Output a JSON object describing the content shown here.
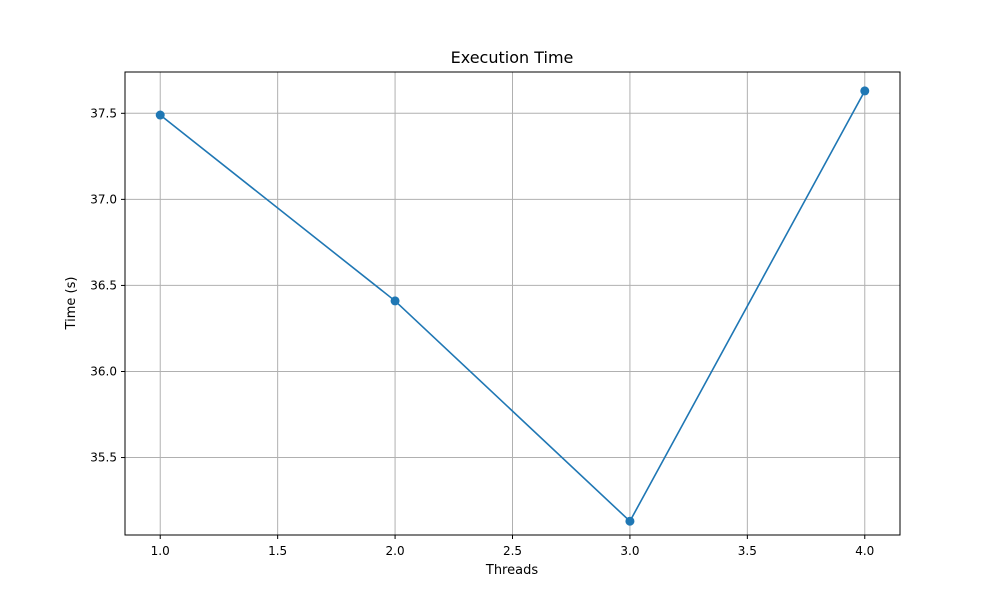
{
  "chart_data": {
    "type": "line",
    "title": "Execution Time",
    "xlabel": "Threads",
    "ylabel": "Time (s)",
    "x": [
      1.0,
      2.0,
      3.0,
      4.0
    ],
    "series": [
      {
        "values": [
          37.49,
          36.41,
          35.13,
          37.63
        ],
        "color": "#1f77b4",
        "marker": "circle"
      }
    ],
    "xlim": [
      0.85,
      4.15
    ],
    "ylim": [
      35.05,
      37.74
    ],
    "xticks": [
      1.0,
      1.5,
      2.0,
      2.5,
      3.0,
      3.5,
      4.0
    ],
    "xtick_labels": [
      "1.0",
      "1.5",
      "2.0",
      "2.5",
      "3.0",
      "3.5",
      "4.0"
    ],
    "yticks": [
      35.5,
      36.0,
      36.5,
      37.0,
      37.5
    ],
    "ytick_labels": [
      "35.5",
      "36.0",
      "36.5",
      "37.0",
      "37.5"
    ],
    "grid": true,
    "grid_color": "#b0b0b0"
  }
}
